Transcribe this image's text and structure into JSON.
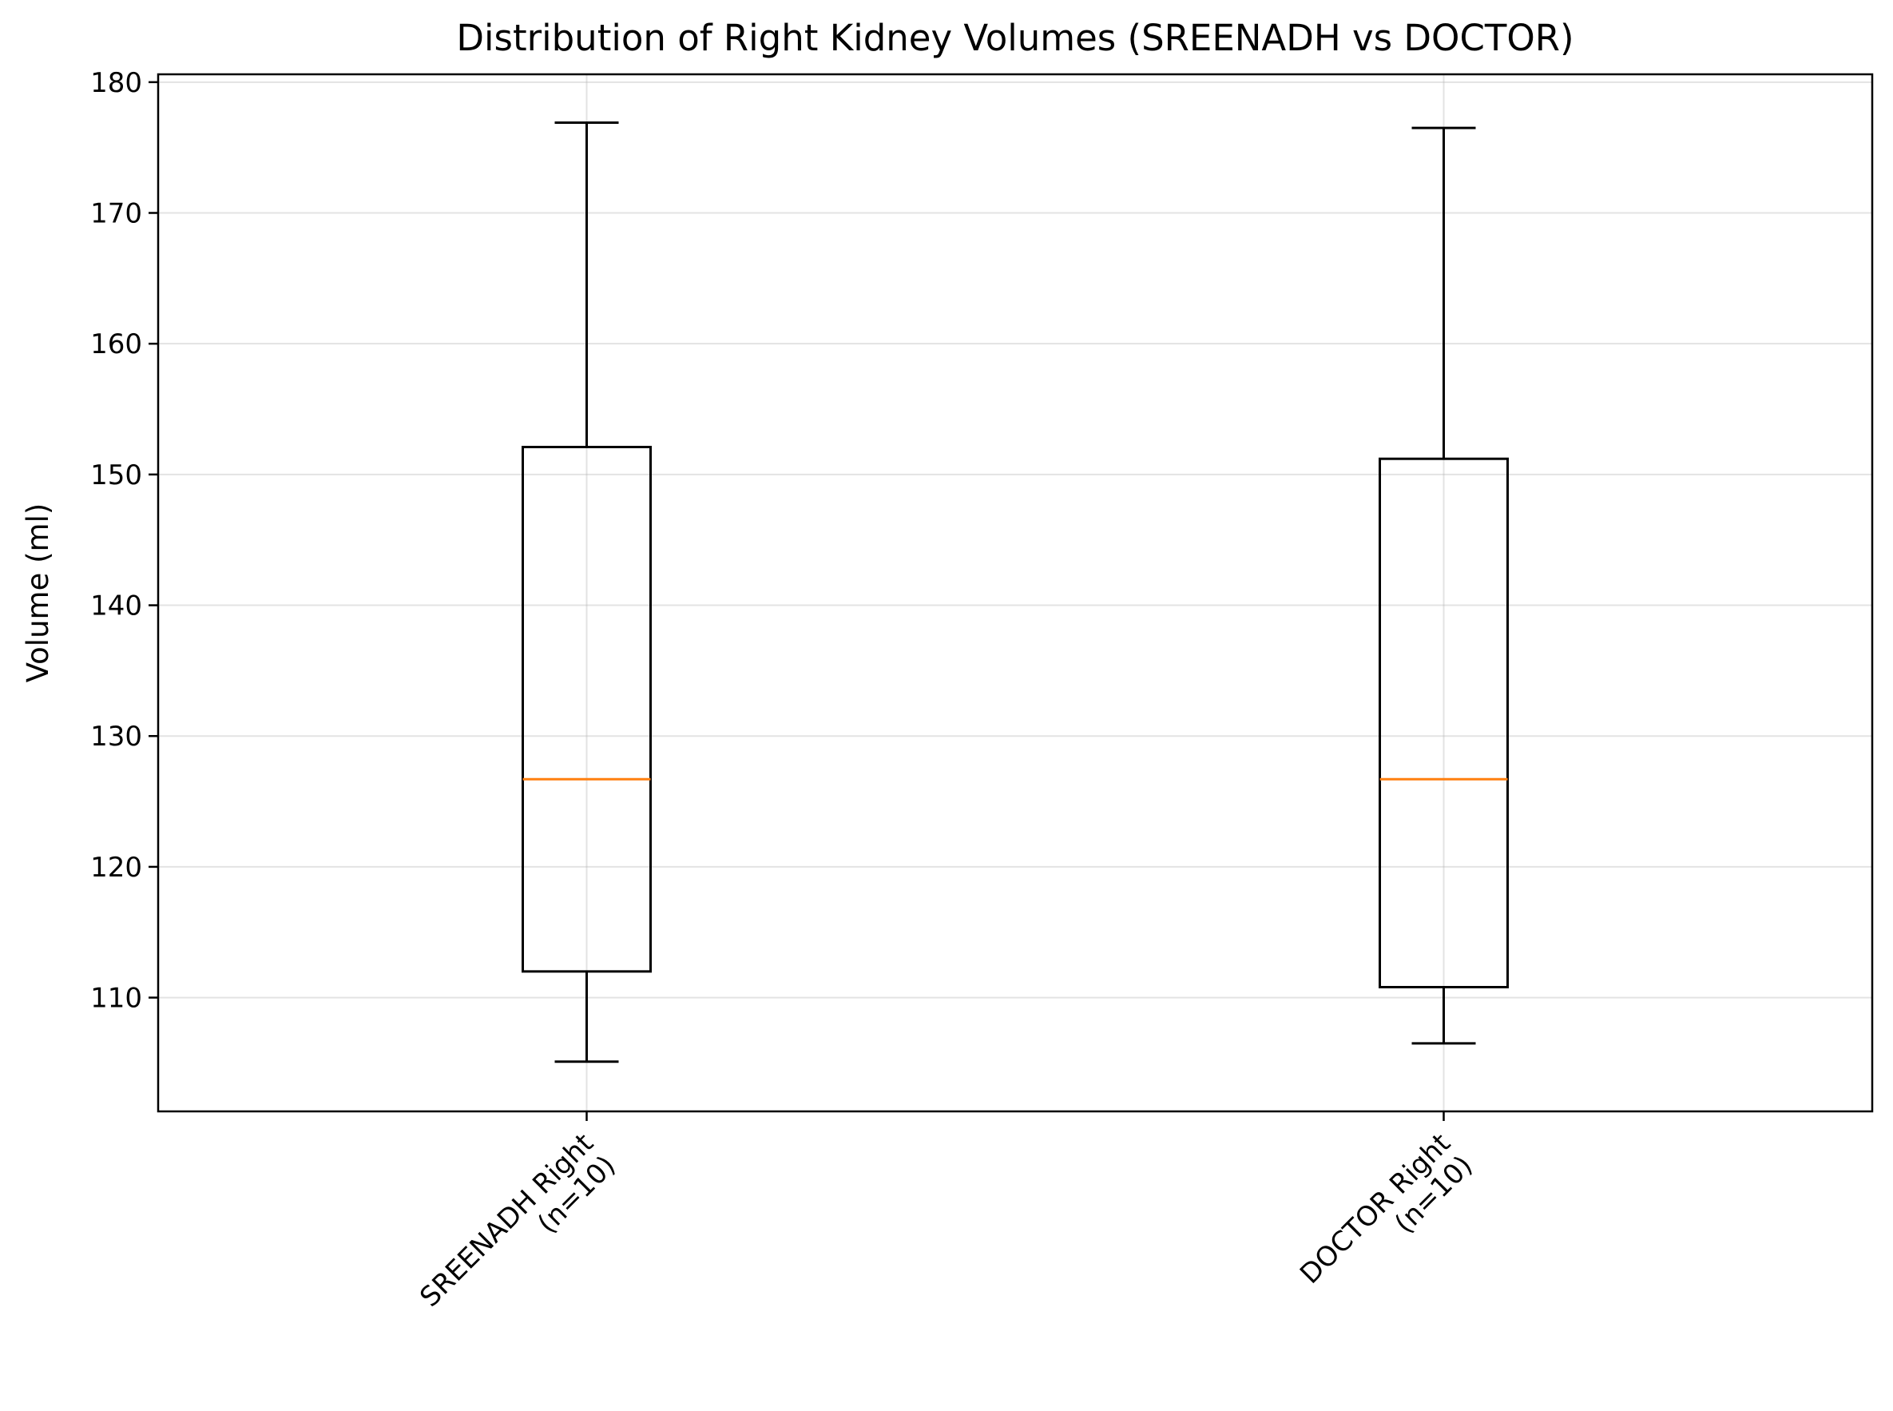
{
  "chart_data": {
    "type": "box",
    "title": "Distribution of Right Kidney Volumes (SREENADH vs DOCTOR)",
    "xlabel": "",
    "ylabel": "Volume (ml)",
    "ylim": [
      101.3,
      180.6
    ],
    "yticks": [
      110,
      120,
      130,
      140,
      150,
      160,
      170,
      180
    ],
    "grid": true,
    "colors": {
      "box": "#000000",
      "median": "#ff7f0e",
      "grid": "#b0b0b0"
    },
    "categories": [
      [
        "SREENADH Right",
        "(n=10)"
      ],
      [
        "DOCTOR Right",
        "(n=10)"
      ]
    ],
    "boxes": [
      {
        "whisker_low": 105.1,
        "q1": 112.0,
        "median": 126.7,
        "q3": 152.1,
        "whisker_high": 176.9
      },
      {
        "whisker_low": 106.5,
        "q1": 110.8,
        "median": 126.7,
        "q3": 151.2,
        "whisker_high": 176.5
      }
    ]
  }
}
